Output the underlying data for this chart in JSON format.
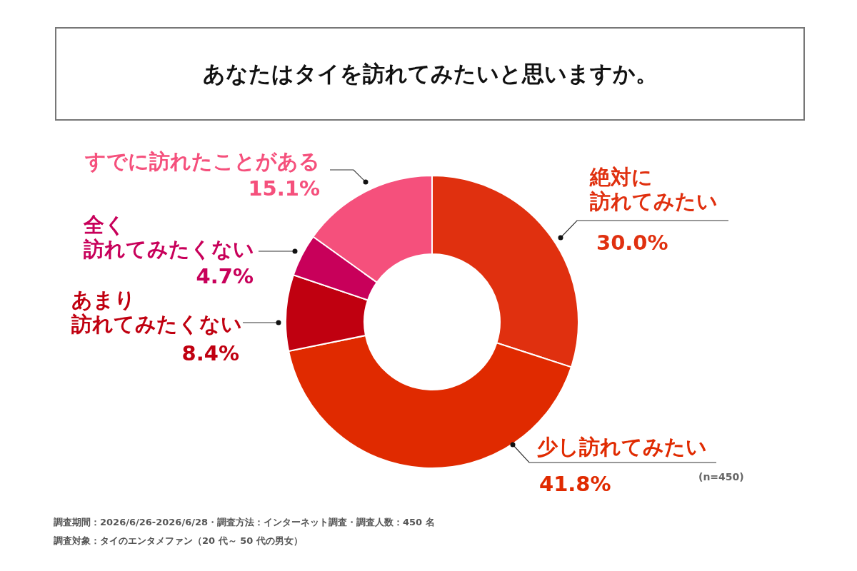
{
  "chart_data": {
    "type": "donut",
    "title": "あなたはタイを訪れてみたいと思いますか。",
    "categories": [
      "絶対に訪れてみたい",
      "少し訪れてみたい",
      "あまり訪れてみたくない",
      "全く訪れてみたくない",
      "すでに訪れたことがある"
    ],
    "values": [
      30.0,
      41.8,
      8.4,
      4.7,
      15.1
    ],
    "colors": [
      "#e0300f",
      "#e02a00",
      "#c00010",
      "#c8005a",
      "#f5507c"
    ],
    "value_labels": [
      "30.0%",
      "41.8%",
      "8.4%",
      "4.7%",
      "15.1%"
    ],
    "annotations": [
      "(n=450)",
      "調査期間：2026/6/26-2026/6/28・調査方法：インターネット調査・調査人数：450 名",
      "調査対象：タイのエンタメファン（20 代～ 50 代の男女）"
    ]
  }
}
